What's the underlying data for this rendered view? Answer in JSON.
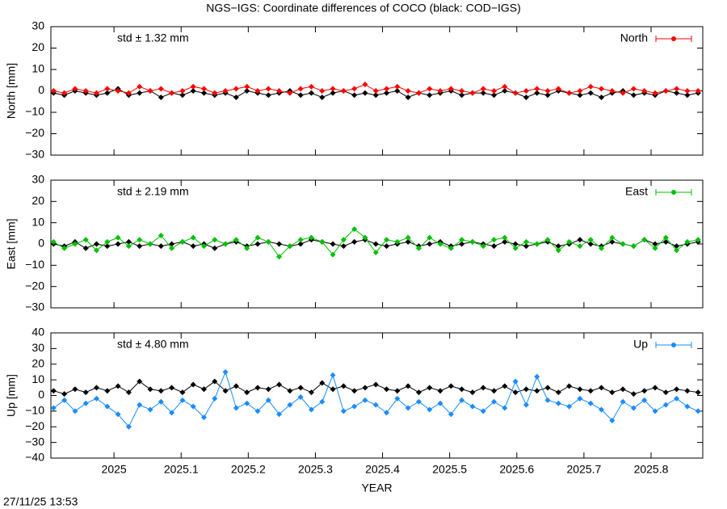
{
  "title": "NGS−IGS: Coordinate differences of COCO (black: COD−IGS)",
  "timestamp": "27/11/25 13:53",
  "chart_data": [
    {
      "type": "line",
      "ylabel": "North [mm]",
      "annotation": "std ± 1.32 mm",
      "x": [
        2024.91,
        2024.926,
        2024.942,
        2024.958,
        2024.974,
        2024.99,
        2025.006,
        2025.022,
        2025.038,
        2025.054,
        2025.07,
        2025.086,
        2025.102,
        2025.118,
        2025.134,
        2025.15,
        2025.166,
        2025.182,
        2025.198,
        2025.214,
        2025.23,
        2025.246,
        2025.262,
        2025.278,
        2025.294,
        2025.31,
        2025.326,
        2025.342,
        2025.358,
        2025.374,
        2025.39,
        2025.406,
        2025.422,
        2025.438,
        2025.454,
        2025.47,
        2025.486,
        2025.502,
        2025.518,
        2025.534,
        2025.55,
        2025.566,
        2025.582,
        2025.598,
        2025.614,
        2025.63,
        2025.646,
        2025.662,
        2025.678,
        2025.694,
        2025.71,
        2025.726,
        2025.742,
        2025.758,
        2025.774,
        2025.79,
        2025.806,
        2025.822,
        2025.838,
        2025.854,
        2025.87
      ],
      "series": [
        {
          "color": "#000000",
          "values": [
            -1,
            -2,
            0,
            -1,
            -2,
            -1,
            1,
            -2,
            -1,
            0,
            -3,
            -1,
            -2,
            0,
            -1,
            -2,
            -1,
            -3,
            0,
            -1,
            -2,
            -1,
            0,
            -2,
            -1,
            -3,
            -1,
            0,
            -2,
            -1,
            -2,
            -1,
            0,
            -3,
            -1,
            -2,
            -1,
            0,
            -2,
            -1,
            -1,
            -2,
            0,
            -1,
            -3,
            -1,
            -2,
            0,
            -1,
            -2,
            -1,
            -3,
            -1,
            0,
            -2,
            -1,
            -2,
            0,
            -1,
            -2,
            -1
          ]
        },
        {
          "name": "North",
          "color": "#ff0000",
          "values": [
            0,
            -1,
            1,
            0,
            -1,
            1,
            0,
            -1,
            2,
            0,
            1,
            -1,
            0,
            2,
            1,
            -1,
            0,
            1,
            2,
            0,
            1,
            0,
            -1,
            1,
            2,
            0,
            1,
            0,
            1,
            3,
            0,
            1,
            2,
            0,
            -1,
            1,
            0,
            1,
            0,
            -1,
            1,
            0,
            2,
            -1,
            0,
            1,
            0,
            1,
            -1,
            0,
            2,
            1,
            0,
            -1,
            1,
            0,
            -1,
            0,
            1,
            0,
            0
          ]
        }
      ],
      "xlim": [
        2024.906,
        2025.877
      ],
      "xticks": [
        2025,
        2025.1,
        2025.2,
        2025.3,
        2025.4,
        2025.5,
        2025.6,
        2025.7,
        2025.8
      ],
      "ylim": [
        -30,
        30
      ],
      "yticks": [
        {
          "value": -30,
          "label": "−30"
        },
        {
          "value": -20,
          "label": "−20"
        },
        {
          "value": -10,
          "label": "−10"
        },
        0,
        10,
        20,
        30
      ],
      "legend": "top-right"
    },
    {
      "type": "line",
      "ylabel": "East [mm]",
      "annotation": "std ± 2.19 mm",
      "x": [
        2024.91,
        2024.926,
        2024.942,
        2024.958,
        2024.974,
        2024.99,
        2025.006,
        2025.022,
        2025.038,
        2025.054,
        2025.07,
        2025.086,
        2025.102,
        2025.118,
        2025.134,
        2025.15,
        2025.166,
        2025.182,
        2025.198,
        2025.214,
        2025.23,
        2025.246,
        2025.262,
        2025.278,
        2025.294,
        2025.31,
        2025.326,
        2025.342,
        2025.358,
        2025.374,
        2025.39,
        2025.406,
        2025.422,
        2025.438,
        2025.454,
        2025.47,
        2025.486,
        2025.502,
        2025.518,
        2025.534,
        2025.55,
        2025.566,
        2025.582,
        2025.598,
        2025.614,
        2025.63,
        2025.646,
        2025.662,
        2025.678,
        2025.694,
        2025.71,
        2025.726,
        2025.742,
        2025.758,
        2025.774,
        2025.79,
        2025.806,
        2025.822,
        2025.838,
        2025.854,
        2025.87
      ],
      "series": [
        {
          "color": "#000000",
          "values": [
            0,
            -1,
            1,
            -2,
            0,
            -1,
            0,
            1,
            -1,
            0,
            -1,
            0,
            1,
            -1,
            0,
            -2,
            0,
            1,
            -1,
            0,
            1,
            0,
            -1,
            0,
            2,
            1,
            0,
            -1,
            1,
            2,
            0,
            -1,
            0,
            1,
            -1,
            0,
            1,
            -1,
            0,
            1,
            0,
            -1,
            1,
            0,
            -1,
            0,
            1,
            -1,
            0,
            2,
            0,
            -1,
            1,
            0,
            -1,
            2,
            0,
            1,
            -1,
            0,
            1
          ]
        },
        {
          "name": "East",
          "color": "#00c000",
          "values": [
            1,
            -2,
            0,
            2,
            -3,
            1,
            3,
            -1,
            2,
            0,
            4,
            -2,
            1,
            3,
            -1,
            2,
            0,
            2,
            -2,
            3,
            1,
            -6,
            -1,
            2,
            3,
            1,
            -5,
            2,
            7,
            3,
            -4,
            2,
            1,
            3,
            -2,
            3,
            0,
            -2,
            2,
            1,
            -1,
            2,
            3,
            -2,
            1,
            0,
            2,
            -3,
            1,
            -1,
            2,
            -2,
            3,
            0,
            -1,
            2,
            -2,
            3,
            -3,
            1,
            2
          ]
        }
      ],
      "xlim": [
        2024.906,
        2025.877
      ],
      "xticks": [
        2025,
        2025.1,
        2025.2,
        2025.3,
        2025.4,
        2025.5,
        2025.6,
        2025.7,
        2025.8
      ],
      "ylim": [
        -30,
        30
      ],
      "yticks": [
        {
          "value": -30,
          "label": "−30"
        },
        {
          "value": -20,
          "label": "−20"
        },
        {
          "value": -10,
          "label": "−10"
        },
        0,
        10,
        20,
        30
      ],
      "legend": "top-right"
    },
    {
      "type": "line",
      "ylabel": "Up [mm]",
      "annotation": "std ± 4.80 mm",
      "xlabel": "YEAR",
      "x": [
        2024.91,
        2024.926,
        2024.942,
        2024.958,
        2024.974,
        2024.99,
        2025.006,
        2025.022,
        2025.038,
        2025.054,
        2025.07,
        2025.086,
        2025.102,
        2025.118,
        2025.134,
        2025.15,
        2025.166,
        2025.182,
        2025.198,
        2025.214,
        2025.23,
        2025.246,
        2025.262,
        2025.278,
        2025.294,
        2025.31,
        2025.326,
        2025.342,
        2025.358,
        2025.374,
        2025.39,
        2025.406,
        2025.422,
        2025.438,
        2025.454,
        2025.47,
        2025.486,
        2025.502,
        2025.518,
        2025.534,
        2025.55,
        2025.566,
        2025.582,
        2025.598,
        2025.614,
        2025.63,
        2025.646,
        2025.662,
        2025.678,
        2025.694,
        2025.71,
        2025.726,
        2025.742,
        2025.758,
        2025.774,
        2025.79,
        2025.806,
        2025.822,
        2025.838,
        2025.854,
        2025.87
      ],
      "series": [
        {
          "color": "#000000",
          "values": [
            3,
            1,
            4,
            2,
            5,
            3,
            6,
            2,
            9,
            4,
            3,
            5,
            2,
            7,
            4,
            9,
            3,
            6,
            2,
            5,
            4,
            7,
            3,
            5,
            2,
            8,
            4,
            6,
            3,
            5,
            7,
            4,
            3,
            6,
            2,
            5,
            3,
            6,
            4,
            2,
            5,
            3,
            6,
            2,
            4,
            3,
            5,
            2,
            6,
            4,
            3,
            5,
            2,
            4,
            1,
            3,
            5,
            2,
            4,
            3,
            2
          ]
        },
        {
          "name": "Up",
          "color": "#1a8cff",
          "values": [
            -8,
            -3,
            -10,
            -5,
            -2,
            -7,
            -12,
            -20,
            -6,
            -9,
            -4,
            -11,
            -3,
            -7,
            -14,
            -2,
            15,
            -8,
            -5,
            -10,
            -3,
            -12,
            -6,
            -1,
            -9,
            -4,
            13,
            -10,
            -7,
            -3,
            -6,
            -11,
            -2,
            -8,
            -4,
            -9,
            -5,
            -12,
            -3,
            -7,
            -10,
            -4,
            -8,
            9,
            -6,
            12,
            -3,
            -5,
            -7,
            -2,
            -5,
            -9,
            -16,
            -4,
            -8,
            -3,
            -10,
            -6,
            -2,
            -7,
            -10
          ]
        }
      ],
      "xlim": [
        2024.906,
        2025.877
      ],
      "xticks": [
        2025,
        2025.1,
        2025.2,
        2025.3,
        2025.4,
        2025.5,
        2025.6,
        2025.7,
        2025.8
      ],
      "ylim": [
        -40,
        40
      ],
      "yticks": [
        {
          "value": -40,
          "label": "−40"
        },
        {
          "value": -30,
          "label": "−30"
        },
        {
          "value": -20,
          "label": "−20"
        },
        {
          "value": -10,
          "label": "−10"
        },
        0,
        10,
        20,
        30,
        40
      ],
      "legend": "top-right"
    }
  ]
}
